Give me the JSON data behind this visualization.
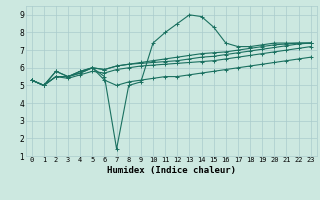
{
  "xlabel": "Humidex (Indice chaleur)",
  "ylabel": "",
  "bg_color": "#cce8e0",
  "grid_color": "#aacccc",
  "line_color": "#1a7060",
  "xlim": [
    -0.5,
    23.5
  ],
  "ylim": [
    1,
    9.5
  ],
  "xticks": [
    0,
    1,
    2,
    3,
    4,
    5,
    6,
    7,
    8,
    9,
    10,
    11,
    12,
    13,
    14,
    15,
    16,
    17,
    18,
    19,
    20,
    21,
    22,
    23
  ],
  "yticks": [
    1,
    2,
    3,
    4,
    5,
    6,
    7,
    8,
    9
  ],
  "lines": [
    [
      5.3,
      5.0,
      5.8,
      5.5,
      5.8,
      6.0,
      5.3,
      5.0,
      5.2,
      5.3,
      5.4,
      5.5,
      5.5,
      5.6,
      5.7,
      5.8,
      5.9,
      6.0,
      6.1,
      6.2,
      6.3,
      6.4,
      6.5,
      6.6
    ],
    [
      5.3,
      5.0,
      5.8,
      5.5,
      5.8,
      6.0,
      5.5,
      1.4,
      5.0,
      5.2,
      7.4,
      8.0,
      8.5,
      9.0,
      8.9,
      8.3,
      7.4,
      7.2,
      7.2,
      7.3,
      7.4,
      7.4,
      7.4,
      7.4
    ],
    [
      5.3,
      5.0,
      5.5,
      5.5,
      5.7,
      6.0,
      5.9,
      6.1,
      6.2,
      6.3,
      6.4,
      6.5,
      6.6,
      6.7,
      6.8,
      6.85,
      6.9,
      7.0,
      7.1,
      7.2,
      7.3,
      7.35,
      7.4,
      7.4
    ],
    [
      5.3,
      5.0,
      5.5,
      5.5,
      5.7,
      6.0,
      5.9,
      6.1,
      6.2,
      6.25,
      6.3,
      6.35,
      6.4,
      6.5,
      6.6,
      6.65,
      6.75,
      6.85,
      6.95,
      7.05,
      7.15,
      7.25,
      7.35,
      7.4
    ],
    [
      5.3,
      5.0,
      5.5,
      5.4,
      5.6,
      5.8,
      5.7,
      5.9,
      6.0,
      6.1,
      6.15,
      6.2,
      6.25,
      6.3,
      6.35,
      6.4,
      6.5,
      6.6,
      6.7,
      6.8,
      6.9,
      7.0,
      7.1,
      7.2
    ]
  ],
  "marker": "+",
  "markersize": 3,
  "linewidth": 0.8,
  "tick_fontsize": 5.0,
  "xlabel_fontsize": 6.5,
  "figsize": [
    3.2,
    2.0
  ],
  "dpi": 100
}
